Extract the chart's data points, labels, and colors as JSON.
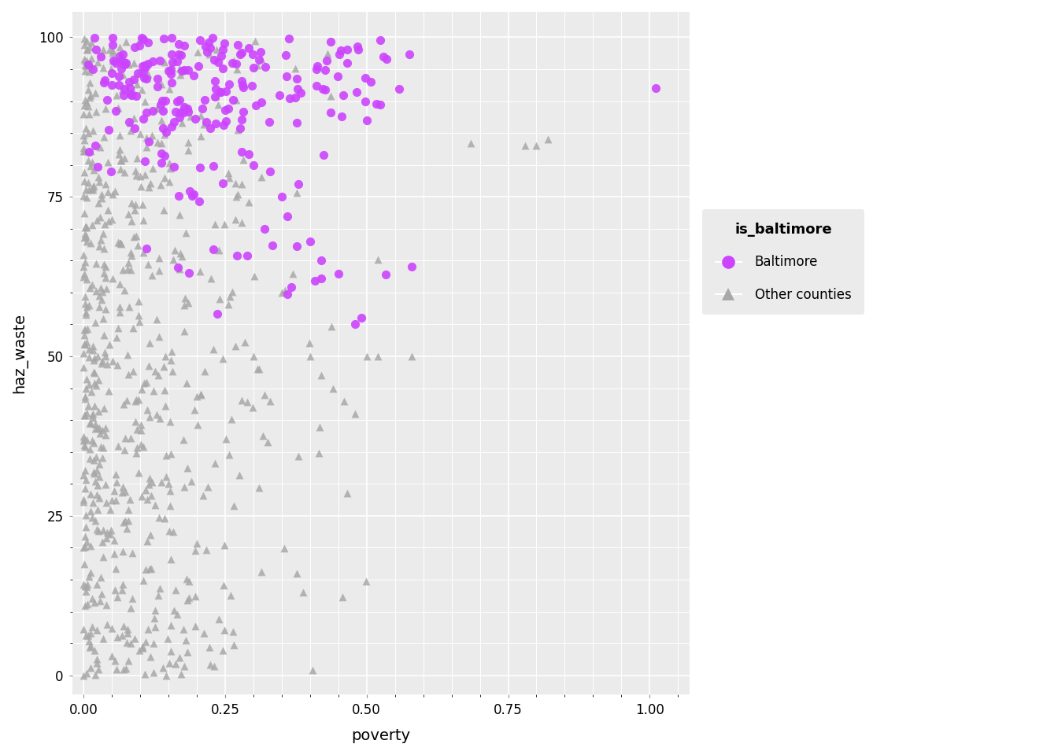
{
  "title": "",
  "xlabel": "poverty",
  "ylabel": "haz_waste",
  "xlim": [
    -0.02,
    1.07
  ],
  "ylim": [
    -3,
    104
  ],
  "xticks": [
    0.0,
    0.25,
    0.5,
    0.75,
    1.0
  ],
  "yticks": [
    0,
    25,
    50,
    75,
    100
  ],
  "fig_bg_color": "#FFFFFF",
  "panel_bg": "#EBEBEB",
  "grid_color": "#FFFFFF",
  "baltimore_color": "#CC44FF",
  "other_color": "#A8A8A8",
  "legend_title": "is_baltimore",
  "legend_labels": [
    "Baltimore",
    "Other counties"
  ],
  "seed": 42
}
